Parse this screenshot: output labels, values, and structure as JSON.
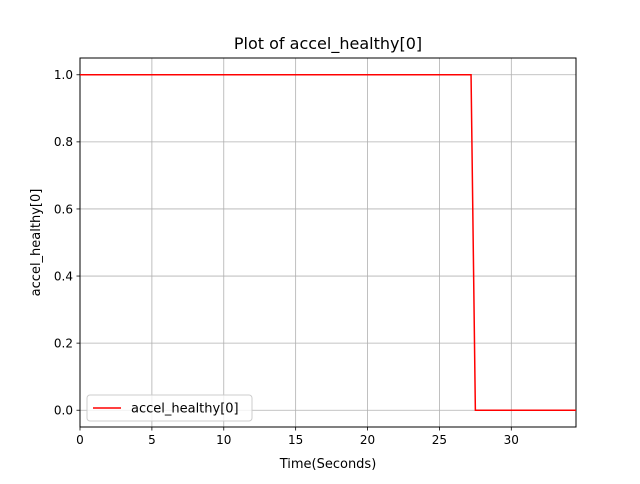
{
  "chart_data": {
    "type": "line",
    "title": "Plot of accel_healthy[0]",
    "xlabel": "Time(Seconds)",
    "ylabel": "accel_healthy[0]",
    "xlim": [
      0,
      34.5
    ],
    "ylim": [
      -0.05,
      1.05
    ],
    "xticks": [
      0,
      5,
      10,
      15,
      20,
      25,
      30
    ],
    "xtick_labels": [
      "0",
      "5",
      "10",
      "15",
      "20",
      "25",
      "30"
    ],
    "yticks": [
      0.0,
      0.2,
      0.4,
      0.6,
      0.8,
      1.0
    ],
    "ytick_labels": [
      "0.0",
      "0.2",
      "0.4",
      "0.6",
      "0.8",
      "1.0"
    ],
    "grid": true,
    "legend": {
      "position": "lower-left",
      "entries": [
        "accel_healthy[0]"
      ]
    },
    "series": [
      {
        "name": "accel_healthy[0]",
        "color": "#ff0000",
        "x": [
          0,
          27.2,
          27.5,
          34.5
        ],
        "y": [
          1.0,
          1.0,
          0.0,
          0.0
        ]
      }
    ]
  }
}
